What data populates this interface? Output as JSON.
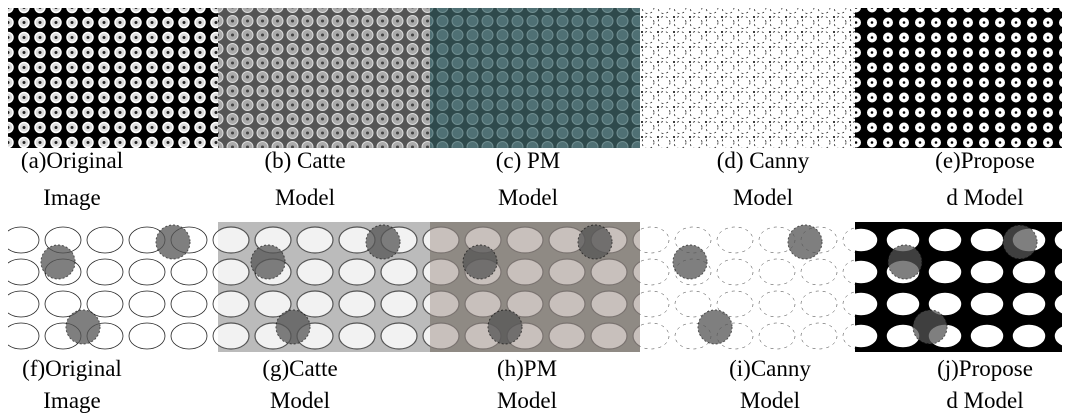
{
  "figure": {
    "rows": [
      {
        "panels": [
          {
            "caption": [
              "(a)Original",
              "Image"
            ]
          },
          {
            "caption": [
              "(b) Catte",
              "Model"
            ]
          },
          {
            "caption": [
              "(c) PM",
              "Model"
            ]
          },
          {
            "caption": [
              "(d) Canny",
              "Model"
            ]
          },
          {
            "caption": [
              "(e)Propose",
              "d Model"
            ]
          }
        ]
      },
      {
        "panels": [
          {
            "caption": [
              "(f)Original",
              "Image"
            ]
          },
          {
            "caption": [
              "(g)Catte",
              "Model"
            ]
          },
          {
            "caption": [
              "(h)PM",
              "Model"
            ]
          },
          {
            "caption": [
              "(i)Canny",
              "Model"
            ]
          },
          {
            "caption": [
              "(j)Propose",
              "d Model"
            ]
          }
        ]
      }
    ]
  }
}
